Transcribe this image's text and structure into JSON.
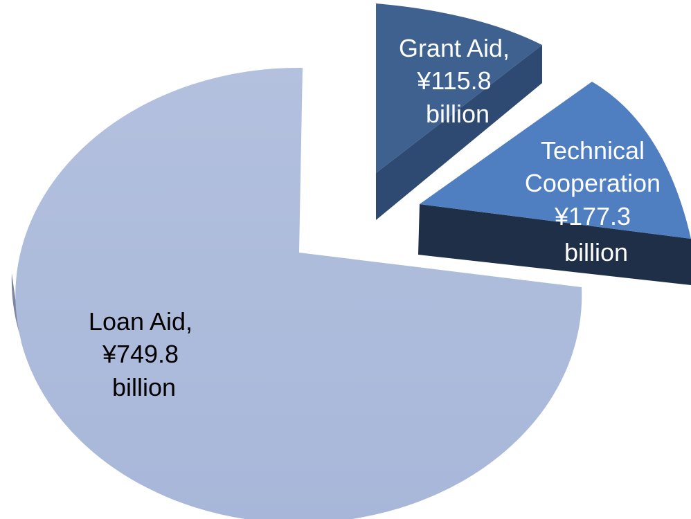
{
  "chart_data": {
    "type": "pie",
    "title": "",
    "unit": "¥ billion",
    "slices": [
      {
        "name": "Loan Aid",
        "value": 749.8,
        "color": "#adbbdb",
        "lines": [
          "Loan Aid,",
          "¥749.8",
          "billion"
        ]
      },
      {
        "name": "Grant Aid",
        "value": 115.8,
        "color": "#3f6190",
        "lines": [
          "Grant Aid,",
          "¥115.8",
          "billion"
        ]
      },
      {
        "name": "Technical Cooperation",
        "value": 177.3,
        "color": "#4f7fc0",
        "lines": [
          "Technical",
          "Cooperation",
          "¥177.3",
          "billion"
        ]
      }
    ],
    "exploded": [
      "Grant Aid",
      "Technical Cooperation"
    ],
    "style": "3d-pie",
    "legend": "none"
  }
}
